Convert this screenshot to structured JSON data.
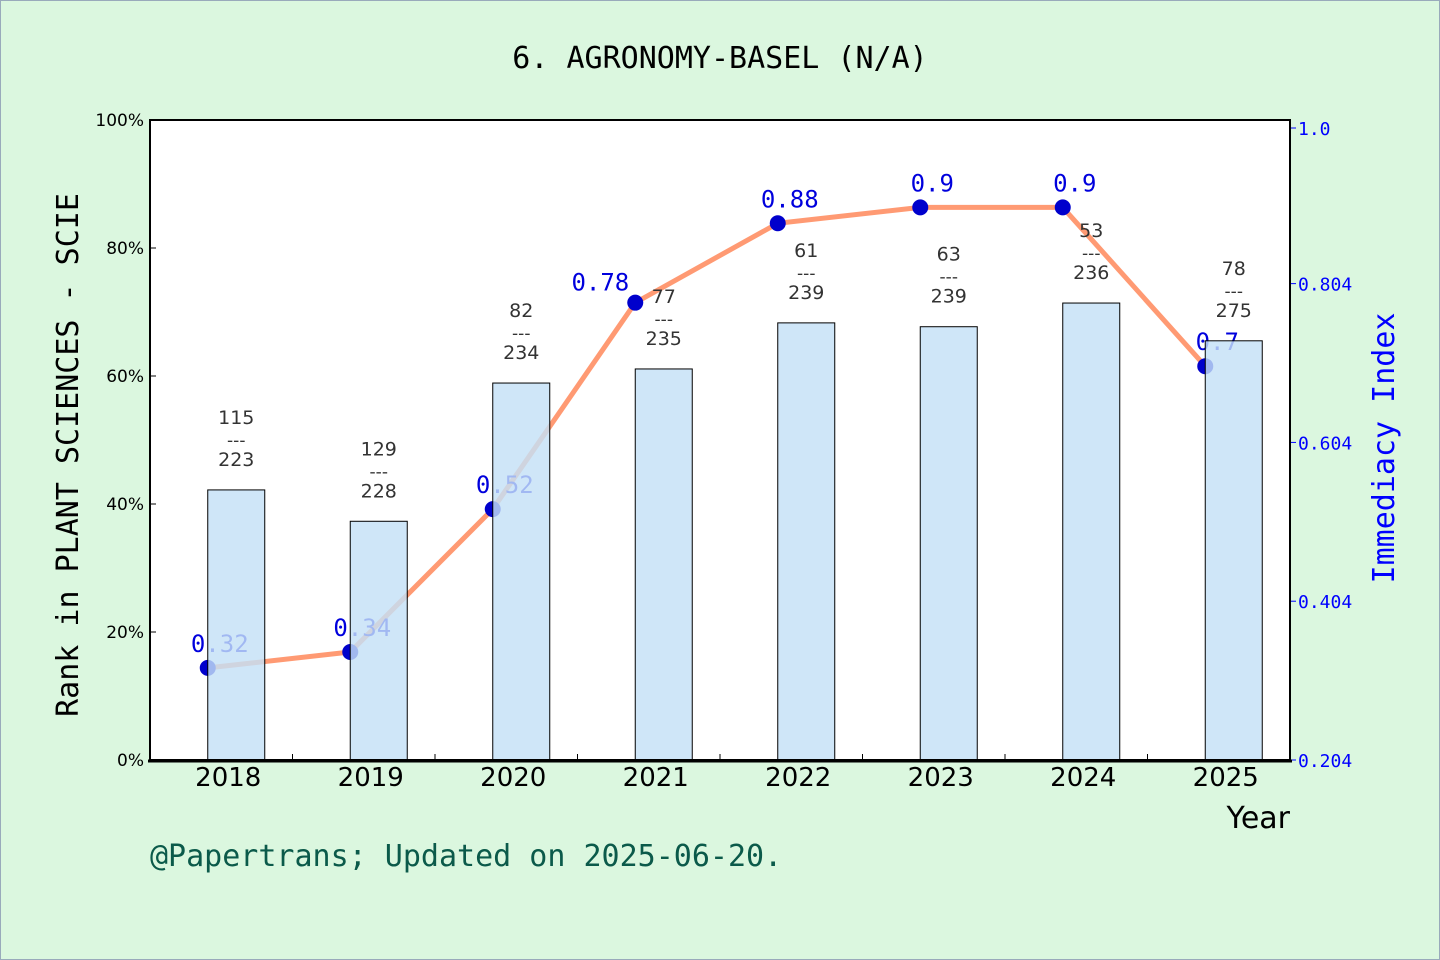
{
  "chart_data": {
    "type": "bar+line",
    "title": "6. AGRONOMY-BASEL (N/A)",
    "xlabel": "Year",
    "ylabel": "Rank in PLANT SCIENCES - SCIE",
    "y2label": "Immediacy Index",
    "categories": [
      "2018",
      "2019",
      "2020",
      "2021",
      "2022",
      "2023",
      "2024",
      "2025"
    ],
    "bar_series": {
      "values": [
        42.2,
        37.3,
        58.9,
        61.1,
        68.3,
        67.7,
        71.4,
        65.5
      ],
      "rank": [
        "115",
        "129",
        "82",
        "77",
        "61",
        "63",
        "53",
        "78"
      ],
      "total": [
        "223",
        "228",
        "234",
        "235",
        "239",
        "239",
        "236",
        "275"
      ],
      "separator": "---"
    },
    "line_series": {
      "values": [
        0.32,
        0.34,
        0.52,
        0.78,
        0.88,
        0.9,
        0.9,
        0.7
      ],
      "labels": [
        "0.32",
        "0.34",
        "0.52",
        "0.78",
        "0.88",
        "0.9",
        "0.9",
        "0.7"
      ]
    },
    "ylim": [
      0,
      100
    ],
    "yticks": [
      "0%",
      "20%",
      "40%",
      "60%",
      "80%",
      "100%"
    ],
    "y2lim": [
      0.204,
      1.0
    ],
    "y2ticks": [
      "0.204",
      "0.404",
      "0.604",
      "0.804",
      "1.0"
    ],
    "grid": false,
    "footer": "@Papertrans; Updated on 2025-06-20.",
    "colors": {
      "bar": "#c5e0f7",
      "line": "#ff9a73",
      "marker": "#0000cc",
      "right_axis": "#0000ff",
      "footer": "#0b5a4a",
      "background": "#dbf7df"
    }
  }
}
